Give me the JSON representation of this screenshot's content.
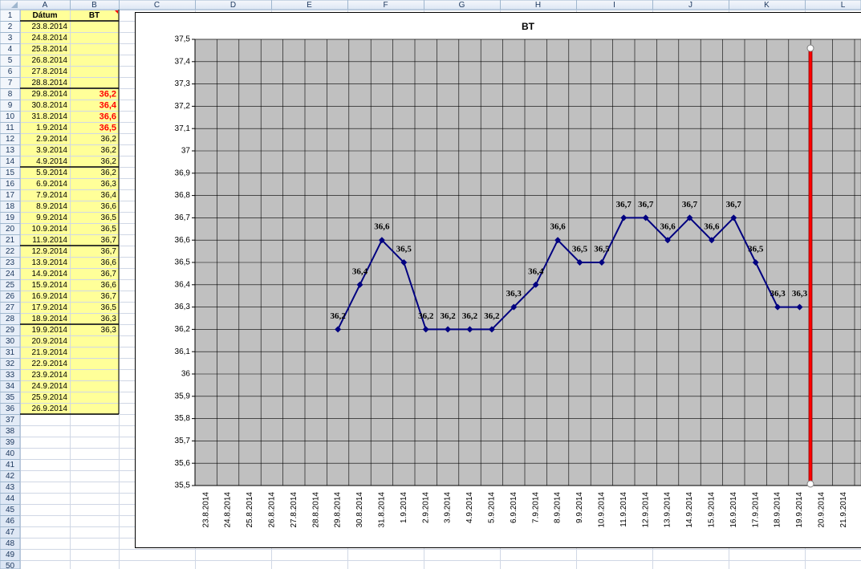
{
  "spreadsheet": {
    "column_headers": [
      "A",
      "B",
      "C",
      "D",
      "E",
      "F",
      "G",
      "H",
      "I",
      "J",
      "K",
      "L"
    ],
    "row_headers": [
      1,
      2,
      3,
      4,
      5,
      6,
      7,
      8,
      9,
      10,
      11,
      12,
      13,
      14,
      15,
      16,
      17,
      18,
      19,
      20,
      21,
      22,
      23,
      24,
      25,
      26,
      27,
      28,
      29,
      30,
      31,
      32,
      33,
      34,
      35,
      36,
      37,
      38,
      39,
      40,
      41,
      42,
      43,
      44,
      45,
      46,
      47,
      48,
      49,
      50
    ],
    "cells": [
      [
        "Dátum",
        "BT"
      ],
      [
        "23.8.2014",
        null
      ],
      [
        "24.8.2014",
        null
      ],
      [
        "25.8.2014",
        null
      ],
      [
        "26.8.2014",
        null
      ],
      [
        "27.8.2014",
        null
      ],
      [
        "28.8.2014",
        null
      ],
      [
        "29.8.2014",
        "36,2"
      ],
      [
        "30.8.2014",
        "36,4"
      ],
      [
        "31.8.2014",
        "36,6"
      ],
      [
        "1.9.2014",
        "36,5"
      ],
      [
        "2.9.2014",
        "36,2"
      ],
      [
        "3.9.2014",
        "36,2"
      ],
      [
        "4.9.2014",
        "36,2"
      ],
      [
        "5.9.2014",
        "36,2"
      ],
      [
        "6.9.2014",
        "36,3"
      ],
      [
        "7.9.2014",
        "36,4"
      ],
      [
        "8.9.2014",
        "36,6"
      ],
      [
        "9.9.2014",
        "36,5"
      ],
      [
        "10.9.2014",
        "36,5"
      ],
      [
        "11.9.2014",
        "36,7"
      ],
      [
        "12.9.2014",
        "36,7"
      ],
      [
        "13.9.2014",
        "36,6"
      ],
      [
        "14.9.2014",
        "36,7"
      ],
      [
        "15.9.2014",
        "36,6"
      ],
      [
        "16.9.2014",
        "36,7"
      ],
      [
        "17.9.2014",
        "36,5"
      ],
      [
        "18.9.2014",
        "36,3"
      ],
      [
        "19.9.2014",
        "36,3"
      ],
      [
        "20.9.2014",
        null
      ],
      [
        "21.9.2014",
        null
      ],
      [
        "22.9.2014",
        null
      ],
      [
        "23.9.2014",
        null
      ],
      [
        "24.9.2014",
        null
      ],
      [
        "25.9.2014",
        null
      ],
      [
        "26.9.2014",
        null
      ]
    ]
  },
  "chart_data": {
    "type": "line",
    "title": "BT",
    "color": "#000080",
    "grid": true,
    "categories": [
      "23.8.2014",
      "24.8.2014",
      "25.8.2014",
      "26.8.2014",
      "27.8.2014",
      "28.8.2014",
      "29.8.2014",
      "30.8.2014",
      "31.8.2014",
      "1.9.2014",
      "2.9.2014",
      "3.9.2014",
      "4.9.2014",
      "5.9.2014",
      "6.9.2014",
      "7.9.2014",
      "8.9.2014",
      "9.9.2014",
      "10.9.2014",
      "11.9.2014",
      "12.9.2014",
      "13.9.2014",
      "14.9.2014",
      "15.9.2014",
      "16.9.2014",
      "17.9.2014",
      "18.9.2014",
      "19.9.2014",
      "20.9.2014",
      "21.9.2014"
    ],
    "values": [
      null,
      null,
      null,
      null,
      null,
      null,
      36.2,
      36.4,
      36.6,
      36.5,
      36.2,
      36.2,
      36.2,
      36.2,
      36.3,
      36.4,
      36.6,
      36.5,
      36.5,
      36.7,
      36.7,
      36.6,
      36.7,
      36.6,
      36.7,
      36.5,
      36.3,
      36.3,
      null,
      null
    ],
    "value_labels": [
      null,
      null,
      null,
      null,
      null,
      null,
      "36,2",
      "36,4",
      "36,6",
      "36,5",
      "36,2",
      "36,2",
      "36,2",
      "36,2",
      "36,3",
      "36,4",
      "36,6",
      "36,5",
      "36,5",
      "36,7",
      "36,7",
      "36,6",
      "36,7",
      "36,6",
      "36,7",
      "36,5",
      "36,3",
      "36,3",
      null,
      null
    ],
    "ylim": [
      35.5,
      37.5
    ],
    "yticks": [
      {
        "value": 35.5,
        "label": "35,5"
      },
      {
        "value": 35.6,
        "label": "35,6"
      },
      {
        "value": 35.7,
        "label": "35,7"
      },
      {
        "value": 35.8,
        "label": "35,8"
      },
      {
        "value": 35.9,
        "label": "35,9"
      },
      36,
      {
        "value": 36.1,
        "label": "36,1"
      },
      {
        "value": 36.2,
        "label": "36,2"
      },
      {
        "value": 36.3,
        "label": "36,3"
      },
      {
        "value": 36.4,
        "label": "36,4"
      },
      {
        "value": 36.5,
        "label": "36,5"
      },
      {
        "value": 36.6,
        "label": "36,6"
      },
      {
        "value": 36.7,
        "label": "36,7"
      },
      {
        "value": 36.8,
        "label": "36,8"
      },
      {
        "value": 36.9,
        "label": "36,9"
      },
      37,
      {
        "value": 37.1,
        "label": "37,1"
      },
      {
        "value": 37.2,
        "label": "37,2"
      },
      {
        "value": 37.3,
        "label": "37,3"
      },
      {
        "value": 37.4,
        "label": "37,4"
      },
      {
        "value": 37.5,
        "label": "37,5"
      }
    ]
  }
}
